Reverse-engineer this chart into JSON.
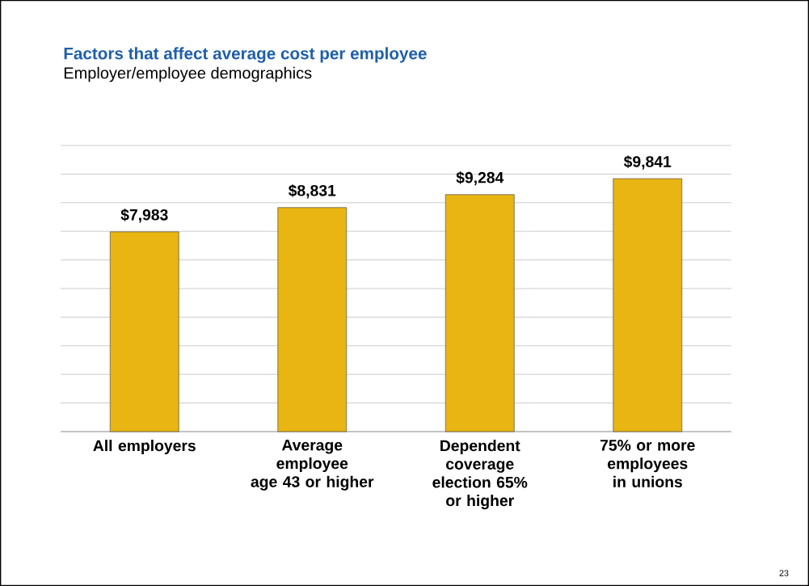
{
  "chart_data": {
    "type": "bar",
    "title": "Factors that affect average cost per employee",
    "subtitle": "Employer/employee demographics",
    "categories": [
      "All employers",
      "Average employee age 43 or higher",
      "Dependent coverage election 65% or higher",
      "75% or more employees in unions"
    ],
    "values": [
      7983,
      8831,
      9284,
      9841
    ],
    "value_labels": [
      "$7,983",
      "$8,831",
      "$9,284",
      "$9,841"
    ],
    "color": "#e8b512",
    "ylim": [
      1000,
      11000
    ],
    "yticks": [
      {
        "value": 1000,
        "label": null
      },
      {
        "value": 2000,
        "label": null
      },
      {
        "value": 3000,
        "label": null
      },
      {
        "value": 4000,
        "label": null
      },
      {
        "value": 5000,
        "label": null
      },
      {
        "value": 6000,
        "label": null
      },
      {
        "value": 7000,
        "label": null
      },
      {
        "value": 8000,
        "label": null
      },
      {
        "value": 9000,
        "label": null
      },
      {
        "value": 10000,
        "label": null
      },
      {
        "value": 11000,
        "label": null
      }
    ],
    "grid": "y",
    "tick_labels": "x",
    "annotations": [
      "23"
    ]
  }
}
